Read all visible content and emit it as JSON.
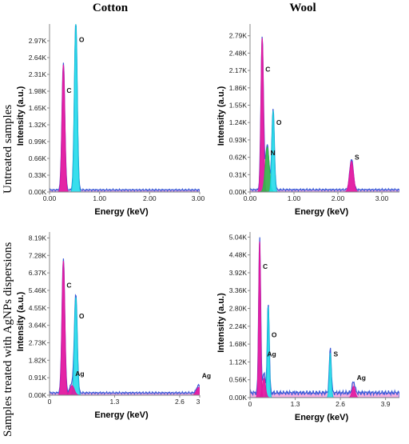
{
  "columns": [
    "Cotton",
    "Wool"
  ],
  "rows": [
    "Untreated samples",
    "Samples treated with AgNPs dispersions"
  ],
  "colors": {
    "cyan": "#18e6ee",
    "cyan_edge": "#15c7d8",
    "magenta": "#e0169e",
    "magenta_light": "#f070c8",
    "green": "#2fb84a",
    "blue_edge": "#3a5ad8",
    "gray_bar": "#c8c8c8"
  },
  "chart_data": [
    {
      "type": "area",
      "panel": "cotton-untreated",
      "xlabel": "Energy (keV)",
      "ylabel": "Intensity (a.u.)",
      "xlim": [
        0,
        3.0
      ],
      "ylim": [
        0,
        3.3
      ],
      "x_ticks": [
        "0.00",
        "1.00",
        "2.00",
        "3.00"
      ],
      "x_tick_values": [
        0,
        1,
        2,
        3
      ],
      "y_ticks": [
        "0.00K",
        "0.33K",
        "0.66K",
        "0.99K",
        "1.32K",
        "1.65K",
        "1.98K",
        "2.31K",
        "2.64K",
        "2.97K"
      ],
      "y_tick_values": [
        0,
        0.33,
        0.66,
        0.99,
        1.32,
        1.65,
        1.98,
        2.31,
        2.64,
        2.97
      ],
      "peaks": [
        {
          "label": "C",
          "x": 0.277,
          "y": 2.5,
          "label_y": 1.95,
          "color": "magenta"
        },
        {
          "label": "O",
          "x": 0.525,
          "y": 3.3,
          "label_y": 2.95,
          "color": "cyan"
        }
      ],
      "baseline": 0.04
    },
    {
      "type": "area",
      "panel": "wool-untreated",
      "xlabel": "Energy (keV)",
      "ylabel": "Intensity (a.u.)",
      "xlim": [
        0,
        3.4
      ],
      "ylim": [
        0,
        3.0
      ],
      "x_ticks": [
        "0.00",
        "1.00",
        "2.00",
        "3.00"
      ],
      "x_tick_values": [
        0,
        1,
        2,
        3
      ],
      "y_ticks": [
        "0.00K",
        "0.31K",
        "0.62K",
        "0.93K",
        "1.24K",
        "1.55K",
        "1.86K",
        "2.17K",
        "2.48K",
        "2.79K"
      ],
      "y_tick_values": [
        0,
        0.31,
        0.62,
        0.93,
        1.24,
        1.55,
        1.86,
        2.17,
        2.48,
        2.79
      ],
      "peaks": [
        {
          "label": "C",
          "x": 0.277,
          "y": 2.75,
          "label_y": 2.15,
          "color": "magenta"
        },
        {
          "label": "N",
          "x": 0.392,
          "y": 0.8,
          "label_y": 0.66,
          "color": "green"
        },
        {
          "label": "O",
          "x": 0.525,
          "y": 1.45,
          "label_y": 1.2,
          "color": "cyan"
        },
        {
          "label": "S",
          "x": 2.31,
          "y": 0.55,
          "label_y": 0.58,
          "color": "magenta"
        }
      ],
      "baseline": 0.04
    },
    {
      "type": "area",
      "panel": "cotton-treated",
      "xlabel": "Energy (keV)",
      "ylabel": "Intensity (a.u.)",
      "xlim": [
        0,
        3.0
      ],
      "ylim": [
        0,
        8.5
      ],
      "x_ticks": [
        "0",
        "1.3",
        "2.6",
        "3"
      ],
      "x_tick_values": [
        0,
        1.3,
        2.6,
        3
      ],
      "y_ticks": [
        "0.00K",
        "0.91K",
        "1.82K",
        "2.73K",
        "3.64K",
        "4.55K",
        "5.46K",
        "6.37K",
        "7.28K",
        "8.19K"
      ],
      "y_tick_values": [
        0,
        0.91,
        1.82,
        2.73,
        3.64,
        4.55,
        5.46,
        6.37,
        7.28,
        8.19
      ],
      "peaks": [
        {
          "label": "C",
          "x": 0.277,
          "y": 7.0,
          "label_y": 5.6,
          "color": "magenta"
        },
        {
          "label": "O",
          "x": 0.525,
          "y": 5.1,
          "label_y": 4.0,
          "color": "cyan"
        },
        {
          "label": "Ag",
          "x": 0.45,
          "y": 0.5,
          "label_y": 1.0,
          "color": "magenta"
        },
        {
          "label": "Ag",
          "x": 2.98,
          "y": 0.4,
          "label_y": 0.9,
          "color": "magenta"
        }
      ],
      "baseline": 0.12
    },
    {
      "type": "area",
      "panel": "wool-treated",
      "xlabel": "Energy (keV)",
      "ylabel": "Intensity (a.u.)",
      "xlim": [
        0,
        4.3
      ],
      "ylim": [
        0,
        5.2
      ],
      "x_ticks": [
        "0",
        "1.3",
        "2.6",
        "3.9"
      ],
      "x_tick_values": [
        0,
        1.3,
        2.6,
        3.9
      ],
      "y_ticks": [
        "0.00K",
        "0.56K",
        "1.12K",
        "1.68K",
        "2.24K",
        "2.80K",
        "3.36K",
        "3.92K",
        "4.48K",
        "5.04K"
      ],
      "y_tick_values": [
        0,
        0.56,
        1.12,
        1.68,
        2.24,
        2.8,
        3.36,
        3.92,
        4.48,
        5.04
      ],
      "peaks": [
        {
          "label": "C",
          "x": 0.277,
          "y": 4.9,
          "label_y": 4.05,
          "color": "magenta"
        },
        {
          "label": "O",
          "x": 0.525,
          "y": 2.85,
          "label_y": 1.9,
          "color": "cyan"
        },
        {
          "label": "Ag",
          "x": 0.4,
          "y": 0.6,
          "label_y": 1.3,
          "color": "magenta"
        },
        {
          "label": "S",
          "x": 2.31,
          "y": 1.4,
          "label_y": 1.3,
          "color": "cyan"
        },
        {
          "label": "Ag",
          "x": 2.98,
          "y": 0.35,
          "label_y": 0.55,
          "color": "magenta"
        }
      ],
      "baseline": 0.15
    }
  ]
}
